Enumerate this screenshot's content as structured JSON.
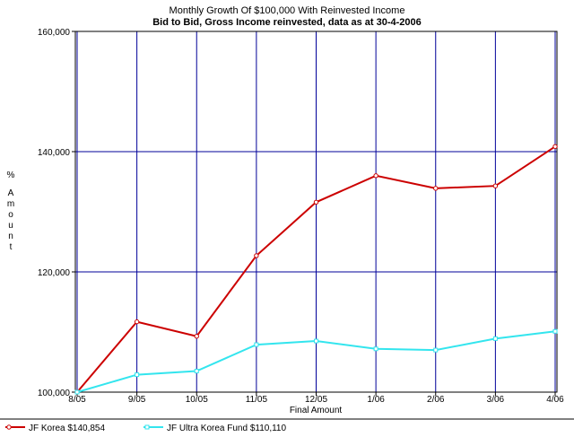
{
  "chart_data": {
    "type": "line",
    "title": "Monthly Growth Of $100,000 With Reinvested Income",
    "subtitle": "Bid to Bid, Gross Income reinvested, data as at 30-4-2006",
    "xlabel": "Final Amount",
    "ylabel": "% Amount",
    "categories": [
      "8/05",
      "9/05",
      "10/05",
      "11/05",
      "12/05",
      "1/06",
      "2/06",
      "3/06",
      "4/06"
    ],
    "ylim": [
      100000,
      160000
    ],
    "yticks": [
      "100,000",
      "120,000",
      "140,000",
      "160,000"
    ],
    "ytick_values": [
      100000,
      120000,
      140000,
      160000
    ],
    "grid": true,
    "legend_position": "bottom",
    "series": [
      {
        "name": "JF Korea $140,854",
        "color": "#cc0000",
        "values": [
          100000,
          111700,
          109300,
          122700,
          131600,
          136000,
          133900,
          134300,
          140854
        ]
      },
      {
        "name": "JF Ultra Korea Fund $110,110",
        "color": "#33e5ee",
        "values": [
          100000,
          102900,
          103500,
          107900,
          108500,
          107200,
          107000,
          108900,
          110110
        ]
      }
    ]
  }
}
